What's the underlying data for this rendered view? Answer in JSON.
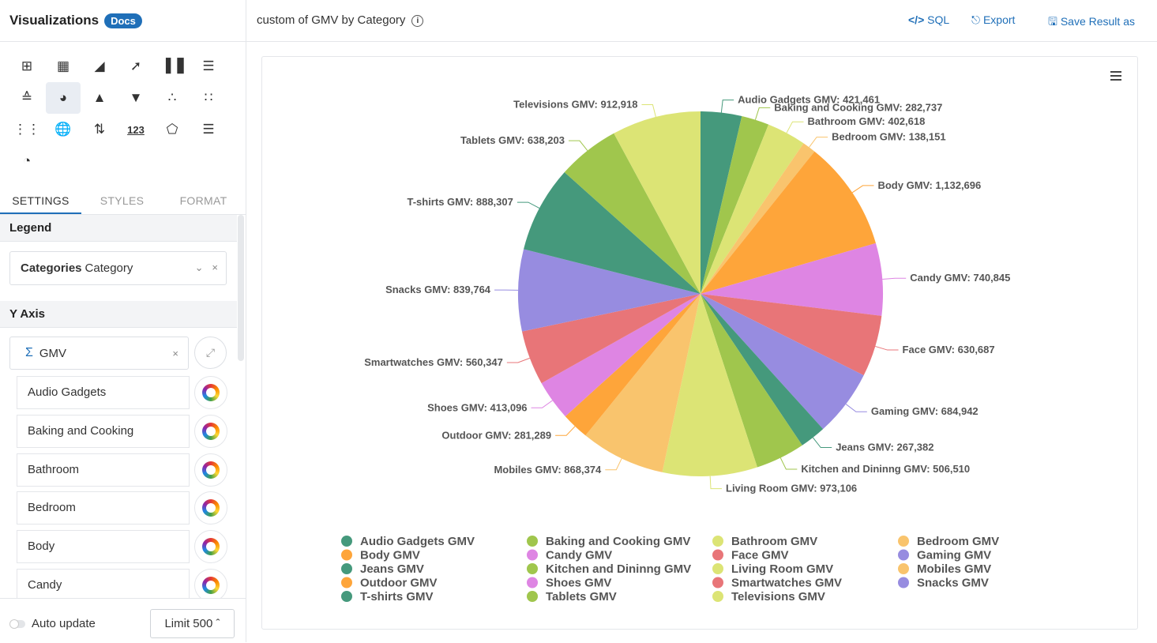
{
  "sidebar": {
    "title": "Visualizations",
    "docs_badge": "Docs",
    "tabs": [
      "SETTINGS",
      "STYLES",
      "FORMAT"
    ],
    "legend_section": "Legend",
    "legend_field": {
      "bold": "Categories",
      "value": "Category"
    },
    "yaxis_section": "Y Axis",
    "yaxis_field": "GMV",
    "categories": [
      "Audio Gadgets",
      "Baking and Cooking",
      "Bathroom",
      "Bedroom",
      "Body",
      "Candy"
    ],
    "auto_update": "Auto update",
    "limit": "Limit 500"
  },
  "viz_icons": [
    "table-icon",
    "pivot-table-icon",
    "area-chart-icon",
    "line-chart-icon",
    "bar-chart-icon",
    "horizontal-bar-icon",
    "combo-chart-icon",
    "pie-chart-icon",
    "pyramid-icon",
    "funnel-icon",
    "scatter-icon",
    "bubble-icon",
    "heatmap-icon",
    "map-icon",
    "sort-icon",
    "number-icon",
    "radar-icon",
    "stacked-bar-icon",
    "gauge-icon"
  ],
  "header": {
    "title": "custom of GMV by Category",
    "sql": "SQL",
    "export": "Export",
    "save": "Save Result as"
  },
  "chart_data": {
    "type": "pie",
    "slices": [
      {
        "name": "Audio Gadgets GMV",
        "label": "Audio Gadgets GMV: 421,461",
        "value": 421461,
        "color": "#45997c"
      },
      {
        "name": "Baking and Cooking GMV",
        "label": "Baking and Cooking GMV: 282,737",
        "value": 282737,
        "color": "#a0c64d"
      },
      {
        "name": "Bathroom GMV",
        "label": "Bathroom GMV: 402,618",
        "value": 402618,
        "color": "#dce475"
      },
      {
        "name": "Bedroom GMV",
        "label": "Bedroom GMV: 138,151",
        "value": 138151,
        "color": "#f9c46d"
      },
      {
        "name": "Body GMV",
        "label": "Body GMV: 1,132,696",
        "value": 1132696,
        "color": "#fea53a"
      },
      {
        "name": "Candy GMV",
        "label": "Candy GMV: 740,845",
        "value": 740845,
        "color": "#de85e3"
      },
      {
        "name": "Face GMV",
        "label": "Face GMV: 630,687",
        "value": 630687,
        "color": "#e87578"
      },
      {
        "name": "Gaming GMV",
        "label": "Gaming GMV: 684,942",
        "value": 684942,
        "color": "#978ce0"
      },
      {
        "name": "Jeans GMV",
        "label": "Jeans GMV: 267,382",
        "value": 267382,
        "color": "#45997c"
      },
      {
        "name": "Kitchen and Dininng GMV",
        "label": "Kitchen and Dininng GMV: 506,510",
        "value": 506510,
        "color": "#a0c64d"
      },
      {
        "name": "Living Room GMV",
        "label": "Living Room GMV: 973,106",
        "value": 973106,
        "color": "#dce475"
      },
      {
        "name": "Mobiles GMV",
        "label": "Mobiles GMV: 868,374",
        "value": 868374,
        "color": "#f9c46d"
      },
      {
        "name": "Outdoor GMV",
        "label": "Outdoor GMV: 281,289",
        "value": 281289,
        "color": "#fea53a"
      },
      {
        "name": "Shoes GMV",
        "label": "Shoes GMV: 413,096",
        "value": 413096,
        "color": "#de85e3"
      },
      {
        "name": "Smartwatches GMV",
        "label": "Smartwatches GMV: 560,347",
        "value": 560347,
        "color": "#e87578"
      },
      {
        "name": "Snacks GMV",
        "label": "Snacks GMV: 839,764",
        "value": 839764,
        "color": "#978ce0"
      },
      {
        "name": "T-shirts GMV",
        "label": "T-shirts GMV: 888,307",
        "value": 888307,
        "color": "#45997c"
      },
      {
        "name": "Tablets GMV",
        "label": "Tablets GMV: 638,203",
        "value": 638203,
        "color": "#a0c64d"
      },
      {
        "name": "Televisions GMV",
        "label": "Televisions GMV: 912,918",
        "value": 912918,
        "color": "#dce475"
      }
    ],
    "legend_position": "bottom",
    "legend_columns": 4
  }
}
